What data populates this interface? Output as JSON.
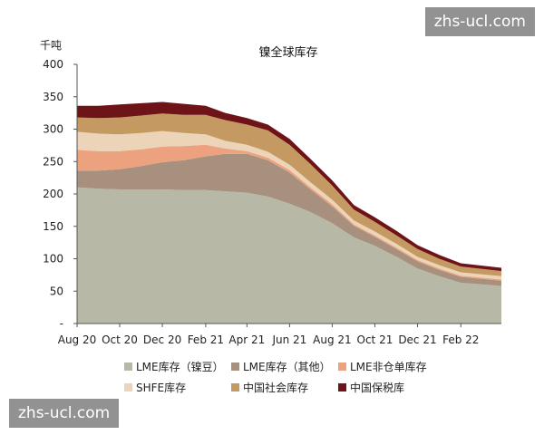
{
  "watermark": "zhs-ucl.com",
  "chart_data": {
    "type": "area",
    "stacked": true,
    "title": "镍全球库存",
    "ylabel": "千吨",
    "ylim": [
      0,
      400
    ],
    "y_ticks": [
      0,
      50,
      100,
      150,
      200,
      250,
      300,
      350,
      400
    ],
    "y_tick_labels": [
      "-",
      "50",
      "100",
      "150",
      "200",
      "250",
      "300",
      "350",
      "400"
    ],
    "x_range": [
      "2020-08-01",
      "2022-03-31"
    ],
    "x_ticks": [
      "2020-08-01",
      "2020-10-01",
      "2020-12-01",
      "2021-02-01",
      "2021-04-01",
      "2021-06-01",
      "2021-08-01",
      "2021-10-01",
      "2021-12-01",
      "2022-02-01"
    ],
    "x_tick_labels": [
      "Aug 20",
      "Oct 20",
      "Dec 20",
      "Feb 21",
      "Apr 21",
      "Jun 21",
      "Aug 21",
      "Oct 21",
      "Dec 21",
      "Feb 22"
    ],
    "x": [
      "2020-08-01",
      "2020-09-01",
      "2020-10-01",
      "2020-11-01",
      "2020-12-01",
      "2021-01-01",
      "2021-02-01",
      "2021-03-01",
      "2021-04-01",
      "2021-05-01",
      "2021-06-01",
      "2021-07-01",
      "2021-08-01",
      "2021-09-01",
      "2021-10-01",
      "2021-11-01",
      "2021-12-01",
      "2022-01-01",
      "2022-02-01",
      "2022-03-31"
    ],
    "series": [
      {
        "name": "LME库存（镍豆）",
        "color": "#b7b8a6",
        "values": [
          210,
          208,
          207,
          207,
          207,
          206,
          206,
          204,
          202,
          196,
          185,
          172,
          155,
          133,
          120,
          103,
          85,
          73,
          63,
          58
        ]
      },
      {
        "name": "LME库存（其他）",
        "color": "#a7917e",
        "values": [
          26,
          28,
          31,
          36,
          42,
          46,
          52,
          58,
          60,
          56,
          48,
          35,
          26,
          18,
          14,
          12,
          11,
          10,
          9,
          8
        ]
      },
      {
        "name": "LME非仓单库存",
        "color": "#eca27e",
        "values": [
          32,
          30,
          28,
          26,
          24,
          22,
          18,
          8,
          4,
          4,
          4,
          3,
          3,
          2,
          2,
          2,
          2,
          2,
          2,
          2
        ]
      },
      {
        "name": "SHFE库存",
        "color": "#ecd4b8",
        "values": [
          28,
          27,
          26,
          25,
          24,
          20,
          16,
          12,
          10,
          9,
          8,
          8,
          7,
          6,
          6,
          6,
          5,
          5,
          5,
          5
        ]
      },
      {
        "name": "中国社会库存",
        "color": "#c49a62",
        "values": [
          22,
          24,
          26,
          27,
          27,
          28,
          30,
          32,
          31,
          33,
          31,
          28,
          22,
          17,
          15,
          13,
          12,
          10,
          9,
          8
        ]
      },
      {
        "name": "中国保税库",
        "color": "#6e1317",
        "values": [
          18,
          19,
          20,
          19,
          18,
          17,
          14,
          11,
          10,
          9,
          9,
          8,
          8,
          7,
          7,
          7,
          6,
          6,
          5,
          5
        ]
      }
    ],
    "legend_position": "bottom",
    "grid": false
  }
}
